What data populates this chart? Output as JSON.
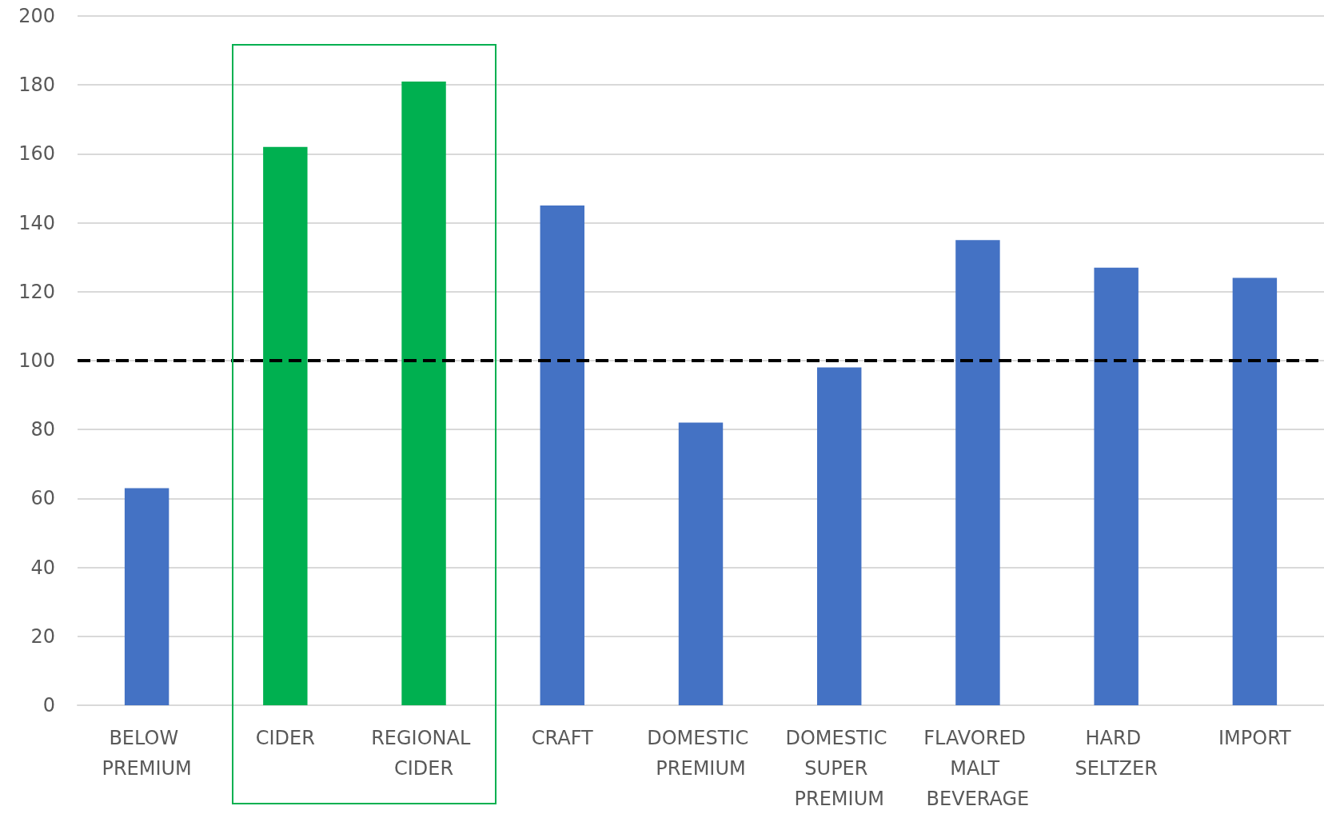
{
  "chart_data": {
    "type": "bar",
    "categories": [
      "BELOW PREMIUM",
      "CIDER",
      "REGIONAL CIDER",
      "CRAFT",
      "DOMESTIC PREMIUM",
      "DOMESTIC SUPER PREMIUM",
      "FLAVORED MALT BEVERAGE",
      "HARD SELTZER",
      "IMPORT"
    ],
    "values": [
      63,
      162,
      181,
      145,
      82,
      98,
      135,
      127,
      124
    ],
    "colors": [
      "#4472c4",
      "#00b050",
      "#00b050",
      "#4472c4",
      "#4472c4",
      "#4472c4",
      "#4472c4",
      "#4472c4",
      "#4472c4"
    ],
    "ylim": [
      0,
      200
    ],
    "yticks": [
      0,
      20,
      40,
      60,
      80,
      100,
      120,
      140,
      160,
      180,
      200
    ],
    "grid": "y",
    "ref_lines": [
      {
        "axis": "y",
        "value": 100,
        "color": "#000000",
        "line_style": "dashed"
      }
    ]
  }
}
